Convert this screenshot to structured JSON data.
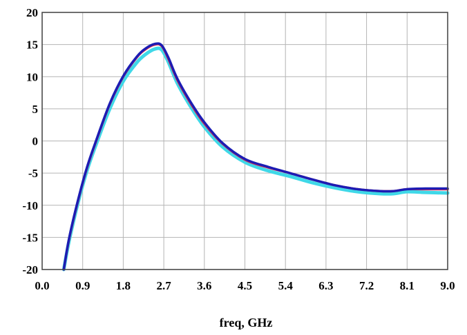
{
  "chart_data": {
    "type": "line",
    "title": "",
    "xlabel": "freq, GHz",
    "ylabel": "",
    "xlim": [
      0.0,
      9.0
    ],
    "ylim": [
      -20,
      20
    ],
    "x_ticks": [
      "0.0",
      "0.9",
      "1.8",
      "2.7",
      "3.6",
      "4.5",
      "5.4",
      "6.3",
      "7.2",
      "8.1",
      "9.0"
    ],
    "y_ticks": [
      "20",
      "15",
      "10",
      "5",
      "0",
      "-5",
      "-10",
      "-15",
      "-20"
    ],
    "grid": true,
    "legend": "none",
    "series": [
      {
        "color": "#3fd8e8",
        "x": [
          0.48,
          0.6,
          0.8,
          1.0,
          1.2,
          1.5,
          1.8,
          2.1,
          2.3,
          2.5,
          2.65,
          2.8,
          3.0,
          3.3,
          3.6,
          4.0,
          4.5,
          5.0,
          5.5,
          6.0,
          6.5,
          7.0,
          7.5,
          7.8,
          8.1,
          8.5,
          9.0
        ],
        "y": [
          -20,
          -15.5,
          -9.5,
          -4.5,
          -0.5,
          5.0,
          9.3,
          12.2,
          13.5,
          14.3,
          14.2,
          12.3,
          9.0,
          5.3,
          2.2,
          -0.9,
          -3.3,
          -4.6,
          -5.5,
          -6.5,
          -7.3,
          -7.9,
          -8.2,
          -8.2,
          -7.9,
          -8.0,
          -8.1
        ]
      },
      {
        "color": "#e03050",
        "x": [
          0.48,
          0.6,
          0.8,
          1.0,
          1.2,
          1.5,
          1.8,
          2.1,
          2.3,
          2.5,
          2.65,
          2.8,
          3.0,
          3.3,
          3.6,
          4.0,
          4.5,
          5.0,
          5.5,
          6.0,
          6.5,
          7.0,
          7.5,
          7.8,
          8.1,
          8.5,
          9.0
        ],
        "y": [
          -20,
          -15.2,
          -9.2,
          -4.1,
          0.0,
          5.7,
          10.0,
          13.0,
          14.3,
          15.0,
          14.8,
          12.8,
          9.5,
          5.8,
          2.7,
          -0.4,
          -2.9,
          -4.1,
          -5.0,
          -6.0,
          -6.9,
          -7.5,
          -7.8,
          -7.8,
          -7.5,
          -7.5,
          -7.5
        ]
      },
      {
        "color": "#1c1cb4",
        "x": [
          0.48,
          0.6,
          0.8,
          1.0,
          1.2,
          1.5,
          1.8,
          2.1,
          2.3,
          2.5,
          2.65,
          2.8,
          3.0,
          3.3,
          3.6,
          4.0,
          4.5,
          5.0,
          5.5,
          6.0,
          6.5,
          7.0,
          7.5,
          7.8,
          8.1,
          8.5,
          9.0
        ],
        "y": [
          -20,
          -15.1,
          -9.1,
          -4.0,
          0.1,
          5.8,
          10.1,
          13.1,
          14.4,
          15.1,
          14.9,
          13.0,
          9.7,
          6.0,
          2.9,
          -0.3,
          -2.8,
          -4.0,
          -5.0,
          -6.0,
          -6.9,
          -7.5,
          -7.8,
          -7.8,
          -7.5,
          -7.4,
          -7.4
        ]
      }
    ]
  }
}
